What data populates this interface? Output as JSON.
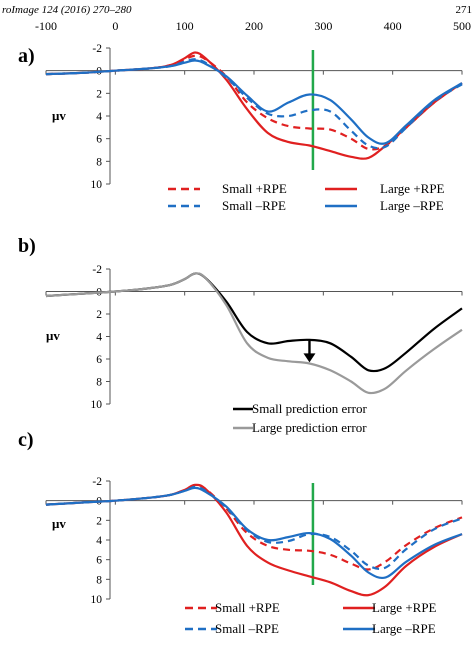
{
  "header": {
    "journal": "roImage 124 (2016) 270–280",
    "page": "271"
  },
  "chart_data": [
    {
      "type": "line",
      "panel_label": "a)",
      "top_axis_ticks": [
        "-100",
        "0",
        "100",
        "200",
        "300",
        "400",
        "500"
      ],
      "xlim": [
        -100,
        500
      ],
      "ylim": [
        10,
        -2
      ],
      "y_inverted": true,
      "ylabel": "μv",
      "y_ticks": [
        "-2",
        "0",
        "2",
        "4",
        "6",
        "8",
        "10"
      ],
      "marker_line": {
        "x": 285,
        "color": "#22a84a"
      },
      "legend": [
        "Small +RPE",
        "Large +RPE",
        "Small –RPE",
        "Large –RPE"
      ],
      "legend_placement": "bottom",
      "series": [
        {
          "name": "Small +RPE",
          "color": "#e02020",
          "dash": true,
          "x": [
            -100,
            -50,
            0,
            50,
            80,
            100,
            115,
            130,
            160,
            190,
            220,
            250,
            280,
            310,
            340,
            365,
            390,
            420,
            460,
            500
          ],
          "y": [
            0.3,
            0.2,
            0.0,
            -0.2,
            -0.5,
            -1.0,
            -1.3,
            -1.0,
            0.5,
            2.8,
            4.2,
            4.9,
            5.1,
            5.2,
            6.0,
            6.9,
            6.6,
            5.0,
            2.8,
            1.1
          ]
        },
        {
          "name": "Large +RPE",
          "color": "#e02020",
          "dash": false,
          "x": [
            -100,
            -50,
            0,
            50,
            80,
            100,
            115,
            130,
            160,
            190,
            220,
            250,
            280,
            310,
            340,
            365,
            390,
            420,
            460,
            500
          ],
          "y": [
            0.3,
            0.2,
            0.0,
            -0.2,
            -0.5,
            -1.1,
            -1.6,
            -1.1,
            0.8,
            3.4,
            5.5,
            6.3,
            6.6,
            7.1,
            7.6,
            7.7,
            6.6,
            5.0,
            2.8,
            1.1
          ]
        },
        {
          "name": "Small –RPE",
          "color": "#1f6fc4",
          "dash": true,
          "x": [
            -100,
            -50,
            0,
            50,
            80,
            100,
            115,
            130,
            160,
            190,
            220,
            250,
            280,
            310,
            340,
            365,
            390,
            420,
            460,
            500
          ],
          "y": [
            0.3,
            0.2,
            0.0,
            -0.2,
            -0.4,
            -0.8,
            -1.0,
            -0.7,
            0.6,
            2.4,
            3.8,
            4.0,
            3.5,
            3.6,
            5.3,
            6.6,
            6.7,
            5.0,
            2.7,
            1.2
          ]
        },
        {
          "name": "Large –RPE",
          "color": "#1f6fc4",
          "dash": false,
          "x": [
            -100,
            -50,
            0,
            50,
            80,
            100,
            115,
            130,
            160,
            190,
            220,
            250,
            280,
            310,
            340,
            365,
            390,
            420,
            460,
            500
          ],
          "y": [
            0.3,
            0.2,
            0.0,
            -0.2,
            -0.4,
            -0.7,
            -0.9,
            -0.6,
            0.5,
            2.2,
            3.6,
            2.8,
            2.1,
            2.6,
            4.3,
            5.9,
            6.4,
            4.8,
            2.6,
            1.1
          ]
        }
      ]
    },
    {
      "type": "line",
      "panel_label": "b)",
      "xlim": [
        -100,
        500
      ],
      "ylim": [
        10,
        -2
      ],
      "y_inverted": true,
      "ylabel": "μv",
      "y_ticks": [
        "-2",
        "0",
        "2",
        "4",
        "6",
        "8",
        "10"
      ],
      "arrow": {
        "x": 280,
        "from_y": 4.4,
        "to_y": 6.3
      },
      "legend": [
        "Small prediction error",
        "Large prediction error"
      ],
      "legend_placement": "bottom",
      "series": [
        {
          "name": "Small prediction error",
          "color": "#000000",
          "dash": false,
          "x": [
            -100,
            -50,
            0,
            50,
            80,
            100,
            115,
            130,
            160,
            190,
            220,
            250,
            280,
            310,
            340,
            365,
            390,
            420,
            460,
            500
          ],
          "y": [
            0.4,
            0.2,
            0.0,
            -0.3,
            -0.6,
            -1.1,
            -1.6,
            -1.2,
            0.9,
            3.6,
            4.6,
            4.4,
            4.3,
            4.6,
            5.8,
            7.0,
            6.8,
            5.4,
            3.3,
            1.5
          ]
        },
        {
          "name": "Large prediction error",
          "color": "#9a9a9a",
          "dash": false,
          "x": [
            -100,
            -50,
            0,
            50,
            80,
            100,
            115,
            130,
            160,
            190,
            220,
            250,
            280,
            310,
            340,
            365,
            390,
            420,
            460,
            500
          ],
          "y": [
            0.4,
            0.2,
            0.0,
            -0.3,
            -0.6,
            -1.1,
            -1.6,
            -1.2,
            1.2,
            4.6,
            5.9,
            6.2,
            6.4,
            7.0,
            8.0,
            9.0,
            8.6,
            7.0,
            5.1,
            3.4
          ]
        }
      ]
    },
    {
      "type": "line",
      "panel_label": "c)",
      "xlim": [
        -100,
        500
      ],
      "ylim": [
        10,
        -2
      ],
      "y_inverted": true,
      "ylabel": "μv",
      "y_ticks": [
        "-2",
        "0",
        "2",
        "4",
        "6",
        "8",
        "10"
      ],
      "marker_line": {
        "x": 285,
        "color": "#22a84a"
      },
      "legend": [
        "Small +RPE",
        "Large +RPE",
        "Small –RPE",
        "Large –RPE"
      ],
      "legend_placement": "bottom",
      "series": [
        {
          "name": "Small +RPE",
          "color": "#e02020",
          "dash": true,
          "x": [
            -100,
            -50,
            0,
            50,
            80,
            100,
            115,
            130,
            160,
            190,
            220,
            250,
            280,
            310,
            340,
            365,
            390,
            420,
            460,
            500
          ],
          "y": [
            0.4,
            0.2,
            0.0,
            -0.3,
            -0.6,
            -1.1,
            -1.6,
            -1.2,
            0.8,
            3.3,
            4.6,
            5.0,
            5.1,
            5.5,
            6.4,
            7.0,
            6.2,
            4.5,
            2.8,
            1.7
          ]
        },
        {
          "name": "Large +RPE",
          "color": "#e02020",
          "dash": false,
          "x": [
            -100,
            -50,
            0,
            50,
            80,
            100,
            115,
            130,
            160,
            190,
            220,
            250,
            280,
            310,
            340,
            365,
            390,
            420,
            460,
            500
          ],
          "y": [
            0.4,
            0.2,
            0.0,
            -0.3,
            -0.6,
            -1.1,
            -1.6,
            -1.2,
            1.2,
            4.6,
            6.3,
            7.1,
            7.7,
            8.3,
            9.2,
            9.6,
            8.7,
            6.6,
            4.7,
            3.4
          ]
        },
        {
          "name": "Small –RPE",
          "color": "#1f6fc4",
          "dash": true,
          "x": [
            -100,
            -50,
            0,
            50,
            80,
            100,
            115,
            130,
            160,
            190,
            220,
            250,
            280,
            310,
            340,
            365,
            390,
            420,
            460,
            500
          ],
          "y": [
            0.4,
            0.2,
            0.0,
            -0.3,
            -0.6,
            -1.0,
            -1.4,
            -1.0,
            0.7,
            3.0,
            4.2,
            4.1,
            3.4,
            3.7,
            5.1,
            6.6,
            6.8,
            4.9,
            2.9,
            1.8
          ]
        },
        {
          "name": "Large –RPE",
          "color": "#1f6fc4",
          "dash": false,
          "x": [
            -100,
            -50,
            0,
            50,
            80,
            100,
            115,
            130,
            160,
            190,
            220,
            250,
            280,
            310,
            340,
            365,
            390,
            420,
            460,
            500
          ],
          "y": [
            0.4,
            0.2,
            0.0,
            -0.3,
            -0.6,
            -1.0,
            -1.3,
            -0.9,
            0.6,
            2.9,
            4.0,
            3.7,
            3.3,
            3.9,
            5.6,
            7.3,
            7.8,
            6.2,
            4.5,
            3.4
          ]
        }
      ]
    }
  ]
}
